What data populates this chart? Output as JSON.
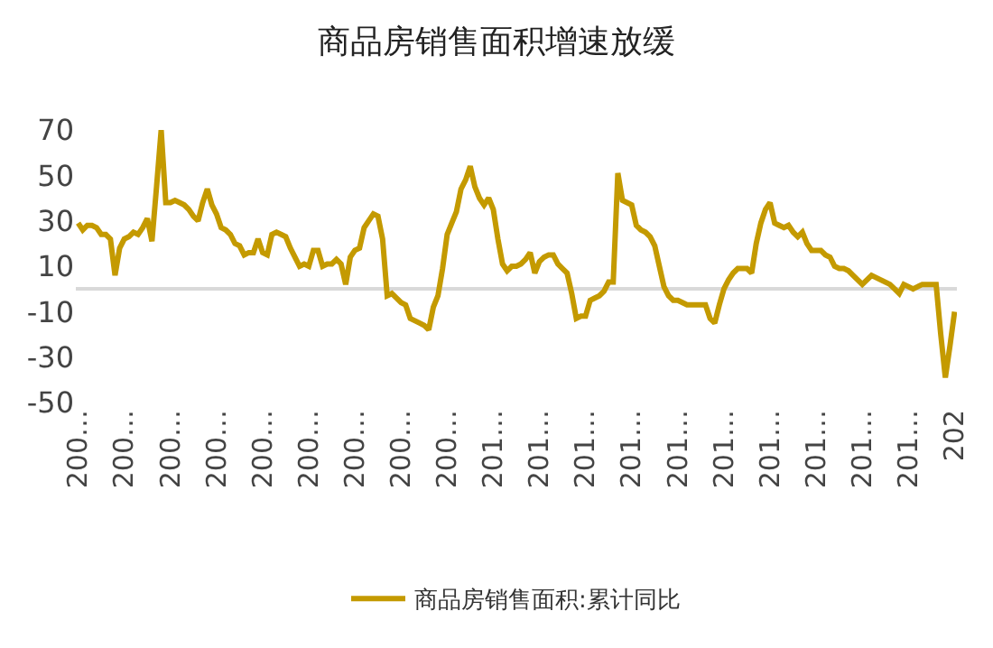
{
  "chart_data": {
    "type": "line",
    "title": "商品房销售面积增速放缓",
    "categories": [
      "200…",
      null,
      null,
      null,
      null,
      null,
      null,
      null,
      null,
      null,
      "200…",
      null,
      null,
      null,
      null,
      null,
      null,
      null,
      null,
      null,
      "200…",
      null,
      null,
      null,
      null,
      null,
      null,
      null,
      null,
      null,
      "200…",
      null,
      null,
      null,
      null,
      null,
      null,
      null,
      null,
      null,
      "200…",
      null,
      null,
      null,
      null,
      null,
      null,
      null,
      null,
      null,
      "200…",
      null,
      null,
      null,
      null,
      null,
      null,
      null,
      null,
      null,
      "200…",
      null,
      null,
      null,
      null,
      null,
      null,
      null,
      null,
      null,
      "200…",
      null,
      null,
      null,
      null,
      null,
      null,
      null,
      null,
      null,
      "200…",
      null,
      null,
      null,
      null,
      null,
      null,
      null,
      null,
      null,
      "201…",
      null,
      null,
      null,
      null,
      null,
      null,
      null,
      null,
      null,
      "201…",
      null,
      null,
      null,
      null,
      null,
      null,
      null,
      null,
      null,
      "201…",
      null,
      null,
      null,
      null,
      null,
      null,
      null,
      null,
      null,
      "201…",
      null,
      null,
      null,
      null,
      null,
      null,
      null,
      null,
      null,
      "201…",
      null,
      null,
      null,
      null,
      null,
      null,
      null,
      null,
      null,
      "201…",
      null,
      null,
      null,
      null,
      null,
      null,
      null,
      null,
      null,
      "201…",
      null,
      null,
      null,
      null,
      null,
      null,
      null,
      null,
      null,
      "201…",
      null,
      null,
      null,
      null,
      null,
      null,
      null,
      null,
      null,
      "201…",
      null,
      null,
      null,
      null,
      null,
      null,
      null,
      null,
      null,
      "201…",
      null,
      null,
      null,
      null,
      null,
      null,
      null,
      null,
      null,
      "202"
    ],
    "series": [
      {
        "name": "商品房销售面积:累计同比",
        "color": "#c49a00",
        "values": [
          29,
          26,
          28,
          28,
          27,
          24,
          24,
          22,
          6,
          18,
          22,
          23,
          25,
          24,
          27,
          31,
          21,
          45,
          70,
          38,
          38,
          39,
          38,
          37,
          35,
          32,
          30,
          38,
          44,
          37,
          33,
          27,
          26,
          24,
          20,
          19,
          15,
          16,
          16,
          22,
          16,
          15,
          24,
          25,
          24,
          23,
          18,
          14,
          10,
          11,
          10,
          17,
          17,
          10,
          11,
          11,
          13,
          11,
          2,
          14,
          17,
          18,
          27,
          30,
          33,
          32,
          22,
          -3,
          -2,
          -4,
          -6,
          -7,
          -13,
          -14,
          -15,
          -16,
          -18,
          -8,
          -3,
          9,
          24,
          29,
          34,
          44,
          48,
          54,
          45,
          40,
          37,
          40,
          35,
          22,
          11,
          8,
          10,
          10,
          11,
          13,
          16,
          7,
          12,
          14,
          15,
          15,
          11,
          9,
          7,
          -2,
          -13,
          -12,
          -12,
          -5,
          -4,
          -3,
          -1,
          3,
          3,
          51,
          39,
          38,
          37,
          28,
          26,
          25,
          23,
          19,
          10,
          1,
          -3,
          -5,
          -5,
          -6,
          -7,
          -7,
          -7,
          -7,
          -7,
          -13,
          -15,
          -7,
          0,
          4,
          7,
          9,
          9,
          9,
          7,
          20,
          29,
          35,
          38,
          29,
          28,
          27,
          28,
          25,
          23,
          25,
          20,
          17,
          17,
          17,
          15,
          14,
          10,
          9,
          9,
          8,
          6,
          4,
          2,
          4,
          6,
          5,
          4,
          3,
          2,
          0,
          -2,
          2,
          1,
          0,
          1,
          2,
          2,
          2,
          2,
          -20,
          -39,
          -25,
          -10
        ]
      }
    ],
    "ylim": [
      -50,
      70
    ],
    "yticks": [
      -50,
      -30,
      -10,
      10,
      30,
      50,
      70
    ],
    "legend": "bottom",
    "marker": "none",
    "line_style": "solid"
  }
}
